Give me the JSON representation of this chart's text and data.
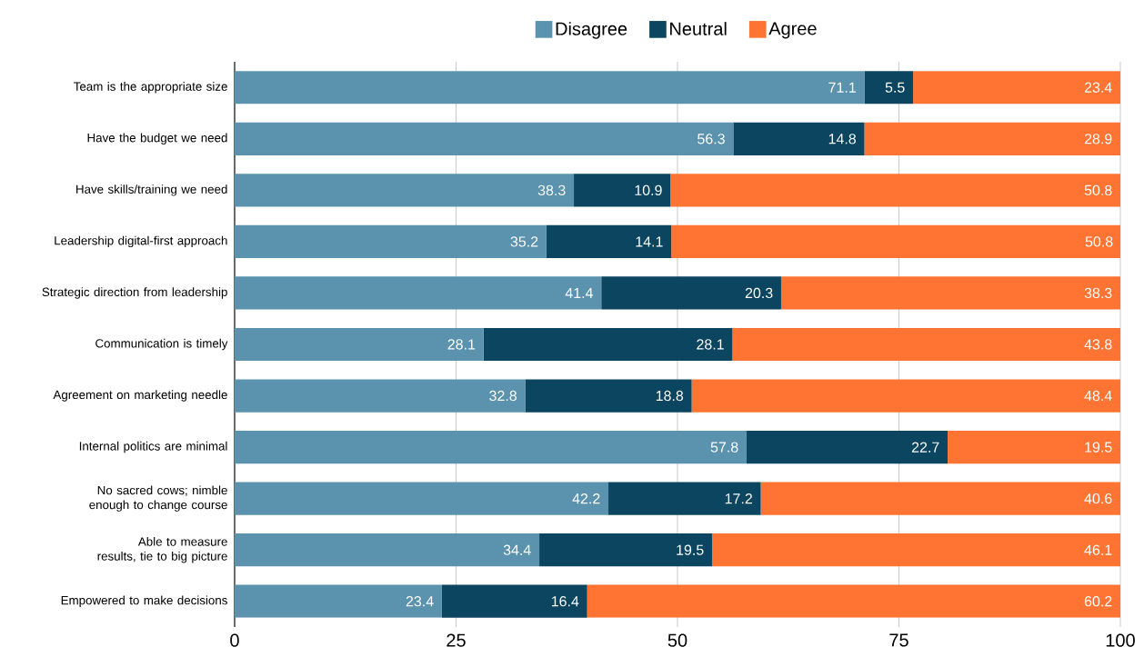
{
  "chart_data": {
    "type": "bar",
    "orientation": "horizontal",
    "stacked": true,
    "data_labels": true,
    "grid": "x",
    "legend": "top",
    "categories": [
      "Team is the appropriate size",
      "Have the budget we need",
      "Have skills/training we need",
      "Leadership digital-first approach",
      "Strategic direction from leadership",
      "Communication is timely",
      "Agreement on marketing needle",
      "Internal politics are minimal",
      "No sacred cows; nimble enough to change course",
      "Able to measure results, tie to big picture",
      "Empowered to make decisions"
    ],
    "series": [
      {
        "name": "Disagree",
        "color": "#5b93ae",
        "values": [
          71.1,
          56.3,
          38.3,
          35.2,
          41.4,
          28.1,
          32.8,
          57.8,
          42.2,
          34.4,
          23.4
        ]
      },
      {
        "name": "Neutral",
        "color": "#0b4560",
        "values": [
          5.5,
          14.8,
          10.9,
          14.1,
          20.3,
          28.1,
          18.8,
          22.7,
          17.2,
          19.5,
          16.4
        ]
      },
      {
        "name": "Agree",
        "color": "#ff7433",
        "values": [
          23.4,
          28.9,
          50.8,
          50.8,
          38.3,
          43.8,
          48.4,
          19.5,
          40.6,
          46.1,
          60.2
        ]
      }
    ],
    "xlim": [
      0,
      100
    ],
    "xticks": [
      0,
      25,
      50,
      75,
      100
    ]
  }
}
